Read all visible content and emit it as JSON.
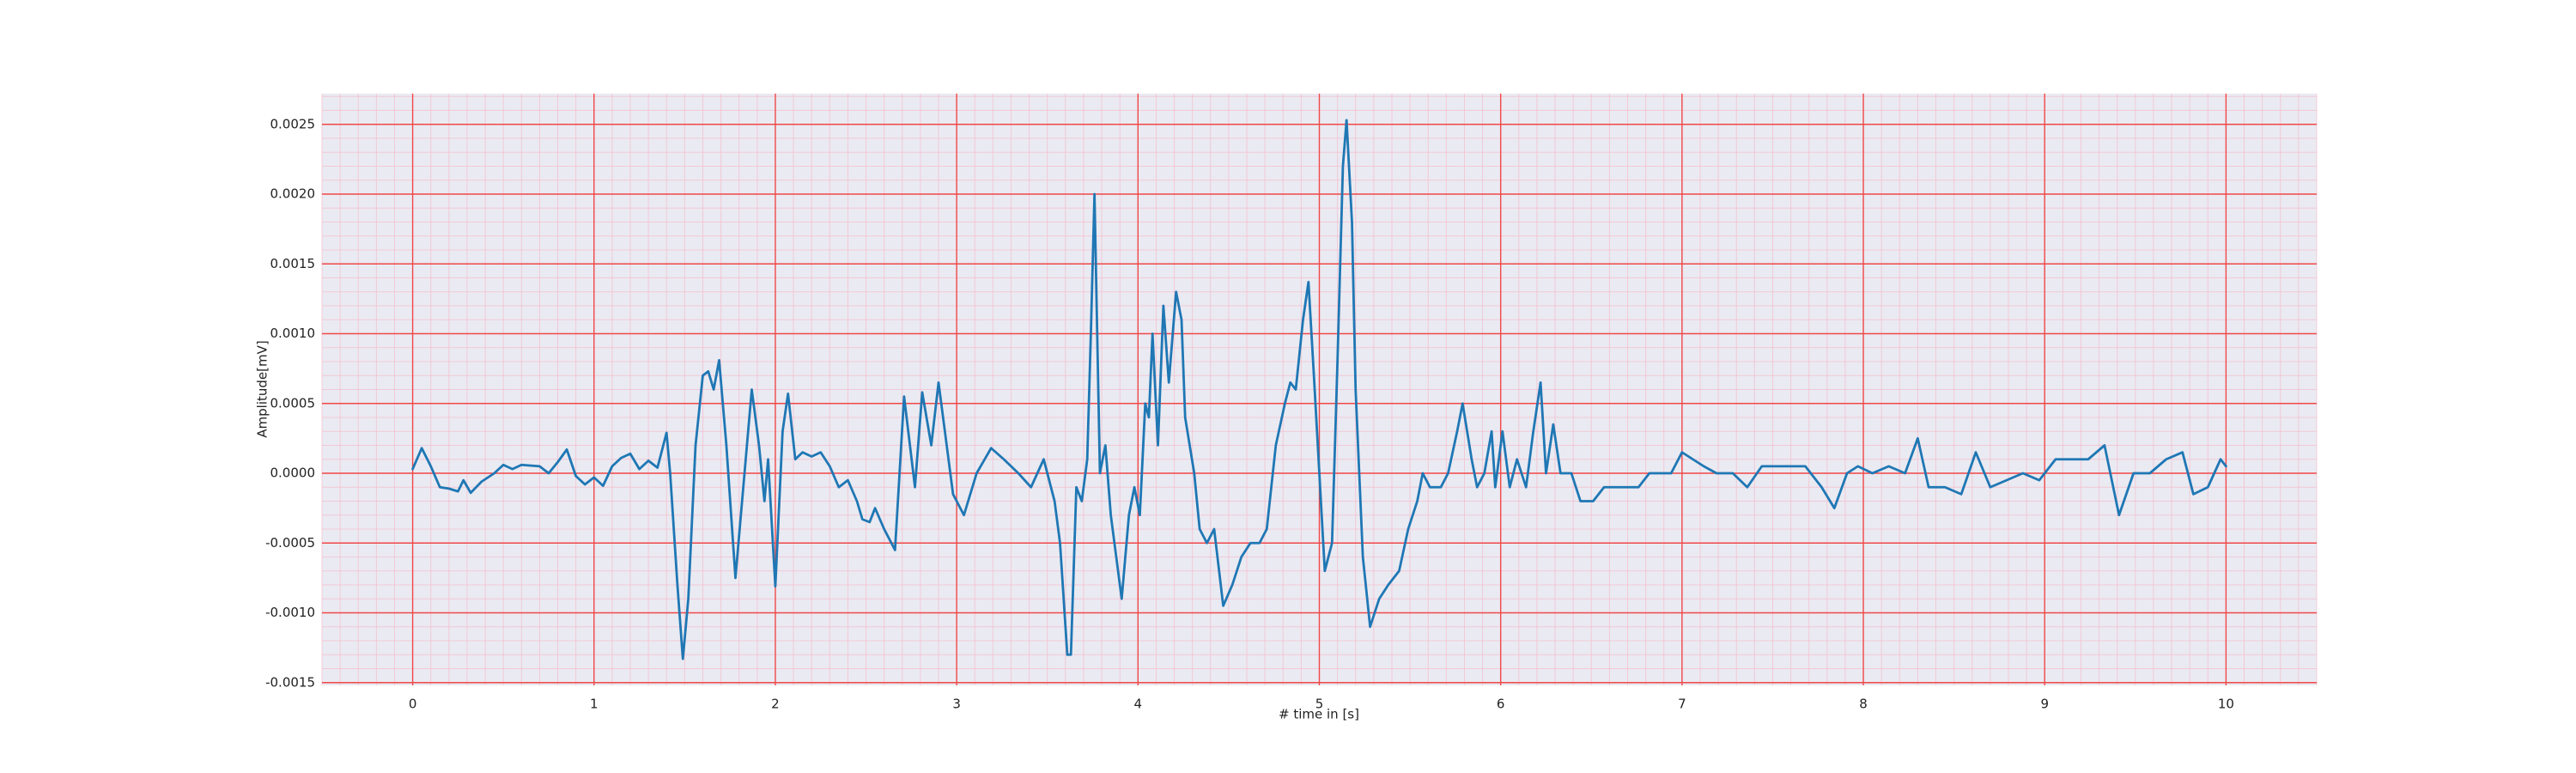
{
  "chart_data": {
    "type": "line",
    "xlabel": "# time in [s]",
    "ylabel": "Amplitude[mV]",
    "color": "#1f77b4",
    "background": "#eaeaf2",
    "grid": true,
    "grid_color": "#f04848",
    "minor_grid": {
      "x": 0.1,
      "y": 0.0001,
      "color": "#f5bccb"
    },
    "xlim": [
      -0.5,
      10.5
    ],
    "ylim": [
      -0.00152,
      0.00272
    ],
    "xticks": [
      0,
      1,
      2,
      3,
      4,
      5,
      6,
      7,
      8,
      9,
      10
    ],
    "yticks": [
      0.0025,
      {
        "value": 0.002,
        "label": "0.0020"
      },
      0.0015,
      {
        "value": 0.001,
        "label": "0.0010"
      },
      0.0005,
      {
        "value": 0,
        "label": "0.0000"
      },
      -0.0005,
      {
        "value": -0.001,
        "label": "-0.0010"
      },
      -0.0015
    ],
    "x": [
      0.0,
      0.05,
      0.1,
      0.15,
      0.2,
      0.25,
      0.28,
      0.32,
      0.38,
      0.45,
      0.5,
      0.55,
      0.6,
      0.7,
      0.75,
      0.8,
      0.85,
      0.9,
      0.95,
      1.0,
      1.05,
      1.1,
      1.15,
      1.2,
      1.25,
      1.3,
      1.35,
      1.4,
      1.42,
      1.46,
      1.49,
      1.52,
      1.56,
      1.6,
      1.63,
      1.66,
      1.69,
      1.73,
      1.78,
      1.83,
      1.87,
      1.91,
      1.94,
      1.96,
      2.0,
      2.04,
      2.07,
      2.11,
      2.15,
      2.2,
      2.25,
      2.3,
      2.35,
      2.4,
      2.45,
      2.48,
      2.52,
      2.55,
      2.6,
      2.66,
      2.71,
      2.77,
      2.81,
      2.86,
      2.9,
      2.98,
      3.04,
      3.11,
      3.19,
      3.26,
      3.34,
      3.41,
      3.48,
      3.54,
      3.57,
      3.61,
      3.63,
      3.66,
      3.69,
      3.72,
      3.74,
      3.76,
      3.79,
      3.82,
      3.85,
      3.91,
      3.95,
      3.98,
      4.01,
      4.04,
      4.06,
      4.08,
      4.11,
      4.14,
      4.17,
      4.21,
      4.24,
      4.26,
      4.31,
      4.34,
      4.38,
      4.42,
      4.47,
      4.52,
      4.57,
      4.62,
      4.67,
      4.71,
      4.76,
      4.81,
      4.84,
      4.87,
      4.91,
      4.94,
      4.97,
      5.0,
      5.03,
      5.07,
      5.1,
      5.13,
      5.15,
      5.18,
      5.2,
      5.24,
      5.28,
      5.33,
      5.38,
      5.44,
      5.49,
      5.54,
      5.57,
      5.61,
      5.67,
      5.71,
      5.76,
      5.79,
      5.84,
      5.87,
      5.91,
      5.95,
      5.97,
      6.01,
      6.05,
      6.09,
      6.14,
      6.18,
      6.22,
      6.25,
      6.29,
      6.33,
      6.39,
      6.44,
      6.51,
      6.57,
      6.63,
      6.69,
      6.76,
      6.82,
      6.89,
      6.94,
      7.0,
      7.06,
      7.12,
      7.19,
      7.28,
      7.36,
      7.44,
      7.52,
      7.6,
      7.68,
      7.77,
      7.84,
      7.91,
      7.97,
      8.05,
      8.14,
      8.23,
      8.3,
      8.36,
      8.45,
      8.54,
      8.62,
      8.7,
      8.79,
      8.88,
      8.97,
      9.06,
      9.15,
      9.24,
      9.33,
      9.41,
      9.49,
      9.58,
      9.67,
      9.76,
      9.82,
      9.9,
      9.97,
      10.0
    ],
    "values": [
      3e-05,
      0.00018,
      5e-05,
      -0.0001,
      -0.00011,
      -0.00013,
      -5e-05,
      -0.00014,
      -6e-05,
      0.0,
      6e-05,
      3e-05,
      6e-05,
      5e-05,
      0.0,
      8e-05,
      0.00017,
      -2e-05,
      -8e-05,
      -3e-05,
      -9e-05,
      5e-05,
      0.00011,
      0.00014,
      3e-05,
      9e-05,
      4e-05,
      0.00029,
      0.0,
      -0.0008,
      -0.00133,
      -0.0009,
      0.0002,
      0.0007,
      0.00073,
      0.0006,
      0.00081,
      0.0002,
      -0.00075,
      0.0,
      0.0006,
      0.0002,
      -0.0002,
      0.0001,
      -0.00081,
      0.0003,
      0.00057,
      0.0001,
      0.00015,
      0.00012,
      0.00015,
      5e-05,
      -0.0001,
      -5e-05,
      -0.0002,
      -0.00033,
      -0.00035,
      -0.00025,
      -0.0004,
      -0.00055,
      0.00055,
      -0.0001,
      0.00058,
      0.0002,
      0.00065,
      -0.00015,
      -0.0003,
      0.0,
      0.00018,
      0.0001,
      0.0,
      -0.0001,
      0.0001,
      -0.0002,
      -0.0005,
      -0.0013,
      -0.0013,
      -0.0001,
      -0.0002,
      0.0001,
      0.001,
      0.002,
      0.0,
      0.0002,
      -0.0003,
      -0.0009,
      -0.0003,
      -0.0001,
      -0.0003,
      0.0005,
      0.0004,
      0.001,
      0.0002,
      0.0012,
      0.00065,
      0.0013,
      0.0011,
      0.0004,
      0.0,
      -0.0004,
      -0.0005,
      -0.0004,
      -0.00095,
      -0.0008,
      -0.0006,
      -0.0005,
      -0.0005,
      -0.0004,
      0.0002,
      0.0005,
      0.00065,
      0.0006,
      0.0011,
      0.00137,
      0.0007,
      0.0,
      -0.0007,
      -0.0005,
      0.0008,
      0.0022,
      0.00253,
      0.0018,
      0.0006,
      -0.0006,
      -0.0011,
      -0.0009,
      -0.0008,
      -0.0007,
      -0.0004,
      -0.0002,
      0.0,
      -0.0001,
      -0.0001,
      0.0,
      0.0003,
      0.0005,
      0.0001,
      -0.0001,
      0.0,
      0.0003,
      -0.0001,
      0.0003,
      -0.0001,
      0.0001,
      -0.0001,
      0.0003,
      0.00065,
      0.0,
      0.00035,
      0.0,
      0.0,
      -0.0002,
      -0.0002,
      -0.0001,
      -0.0001,
      -0.0001,
      -0.0001,
      0.0,
      0.0,
      0.0,
      0.00015,
      0.0001,
      5e-05,
      0.0,
      0.0,
      -0.0001,
      5e-05,
      5e-05,
      5e-05,
      5e-05,
      -0.0001,
      -0.00025,
      0.0,
      5e-05,
      0.0,
      5e-05,
      0.0,
      0.00025,
      -0.0001,
      -0.0001,
      -0.00015,
      0.00015,
      -0.0001,
      -5e-05,
      0.0,
      -5e-05,
      0.0001,
      0.0001,
      0.0001,
      0.0002,
      -0.0003,
      0.0,
      0.0,
      0.0001,
      0.00015,
      -0.00015,
      -0.0001,
      0.0001,
      5e-05
    ]
  }
}
